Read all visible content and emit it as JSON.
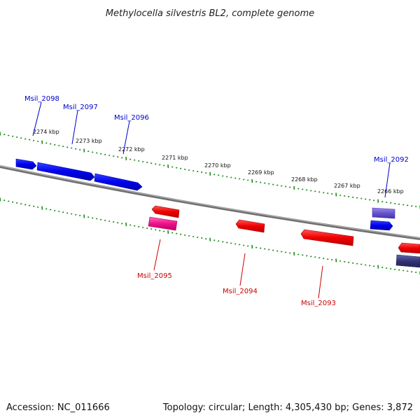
{
  "title": "Methylocella silvestris BL2, complete genome",
  "footer": {
    "accession": "Accession: NC_011666",
    "summary": "Topology: circular; Length: 4,305,430 bp; Genes: 3,872"
  },
  "colors": {
    "forward_label": "#0000cc",
    "reverse_label": "#cc0000",
    "tick": "#1a8a1a",
    "backbone": "#8c8c8c"
  },
  "scale_labels": [
    "2274 kbp",
    "2273 kbp",
    "2272 kbp",
    "2271 kbp",
    "2270 kbp",
    "2269 kbp",
    "2268 kbp",
    "2267 kbp",
    "2266 kbp"
  ],
  "gene_labels_forward": [
    "Msil_2098",
    "Msil_2097",
    "Msil_2096",
    "Msil_2092"
  ],
  "gene_labels_reverse": [
    "Msil_2095",
    "Msil_2094",
    "Msil_2093"
  ]
}
